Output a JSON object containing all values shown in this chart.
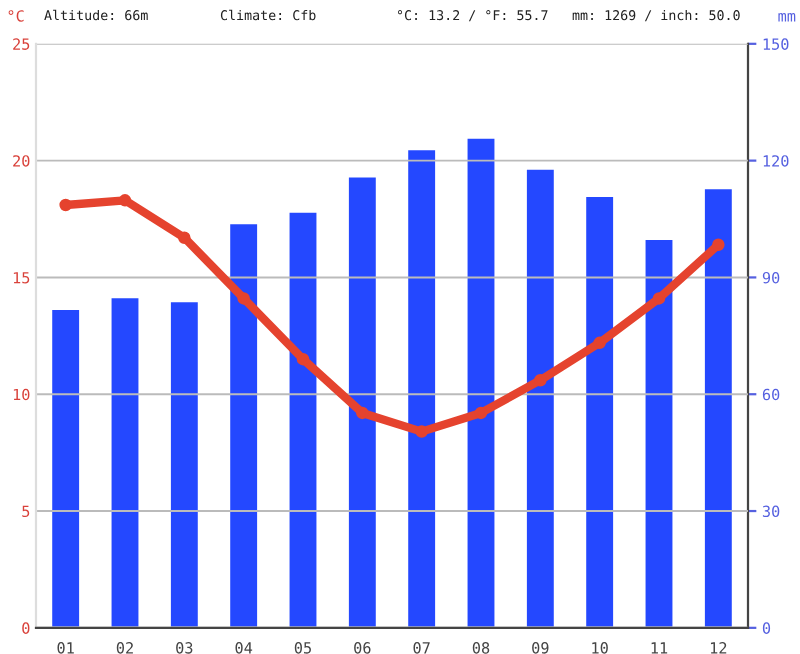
{
  "chart_data": {
    "type": "bar",
    "ylabel": "°C",
    "y2label": "mm",
    "annotations": [
      "Altitude: 66m",
      "Climate: Cfb",
      "°C: 13.2 / °F: 55.7",
      "mm: 1269 / inch: 50.0"
    ],
    "categories": [
      "01",
      "02",
      "03",
      "04",
      "05",
      "06",
      "07",
      "08",
      "09",
      "10",
      "11",
      "12"
    ],
    "series": [
      {
        "axis": "y2",
        "color": "#2448ff",
        "values": [
          82,
          85,
          84,
          104,
          107,
          116,
          123,
          126,
          118,
          111,
          100,
          113
        ]
      },
      {
        "type": "line",
        "axis": "y",
        "color": "#e5432e",
        "marker": "circle",
        "line_style": "solid",
        "values": [
          18.1,
          18.3,
          16.7,
          14.1,
          11.5,
          9.2,
          8.4,
          9.2,
          10.6,
          12.2,
          14.1,
          16.4
        ]
      }
    ],
    "ylim": [
      0,
      25
    ],
    "yticks": [
      0,
      5,
      10,
      15,
      20,
      25
    ],
    "y2lim": [
      0,
      150
    ],
    "y2ticks": [
      0,
      30,
      60,
      90,
      120,
      150
    ],
    "grid": "y",
    "legend": false
  }
}
